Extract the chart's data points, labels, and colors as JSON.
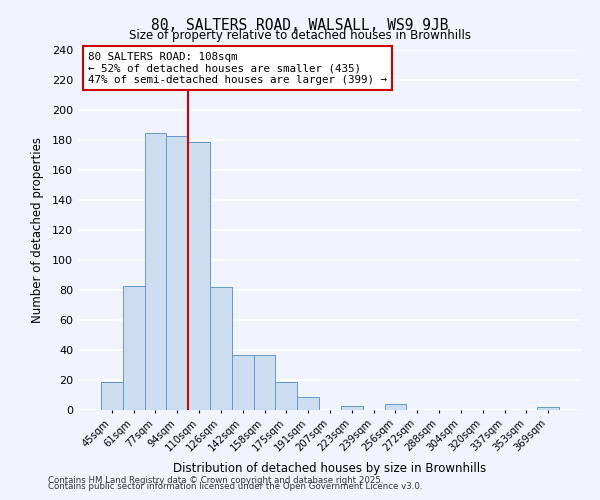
{
  "title": "80, SALTERS ROAD, WALSALL, WS9 9JB",
  "subtitle": "Size of property relative to detached houses in Brownhills",
  "xlabel": "Distribution of detached houses by size in Brownhills",
  "ylabel": "Number of detached properties",
  "footer_line1": "Contains HM Land Registry data © Crown copyright and database right 2025.",
  "footer_line2": "Contains public sector information licensed under the Open Government Licence v3.0.",
  "bin_labels": [
    "45sqm",
    "61sqm",
    "77sqm",
    "94sqm",
    "110sqm",
    "126sqm",
    "142sqm",
    "158sqm",
    "175sqm",
    "191sqm",
    "207sqm",
    "223sqm",
    "239sqm",
    "256sqm",
    "272sqm",
    "288sqm",
    "304sqm",
    "320sqm",
    "337sqm",
    "353sqm",
    "369sqm"
  ],
  "bar_values": [
    19,
    83,
    185,
    183,
    179,
    82,
    37,
    37,
    19,
    9,
    0,
    3,
    0,
    4,
    0,
    0,
    0,
    0,
    0,
    0,
    2
  ],
  "bar_color": "#ccddf0",
  "bar_edge_color": "#6699cc",
  "background_color": "#f0f4ff",
  "grid_color": "#ffffff",
  "annotation_line1": "80 SALTERS ROAD: 108sqm",
  "annotation_line2": "← 52% of detached houses are smaller (435)",
  "annotation_line3": "47% of semi-detached houses are larger (399) →",
  "red_line_color": "#cc0000",
  "red_line_index": 4,
  "ylim": [
    0,
    240
  ],
  "yticks": [
    0,
    20,
    40,
    60,
    80,
    100,
    120,
    140,
    160,
    180,
    200,
    220,
    240
  ]
}
